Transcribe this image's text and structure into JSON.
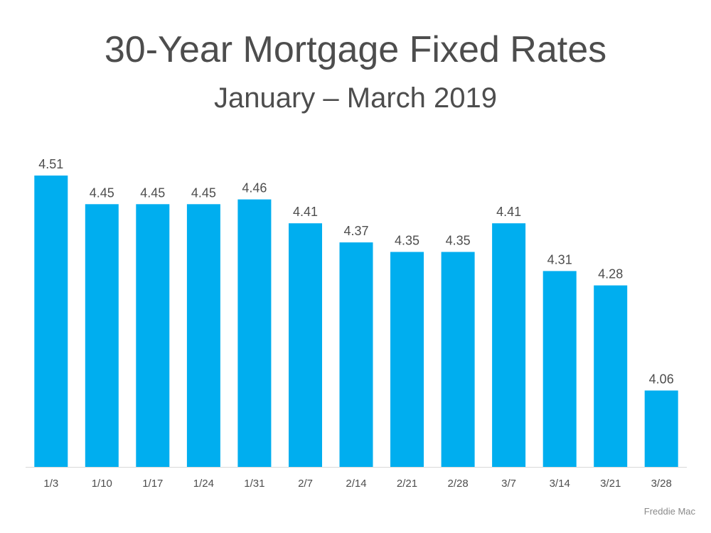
{
  "chart_data": {
    "type": "bar",
    "title": "30-Year Mortgage Fixed Rates",
    "subtitle": "January – March 2019",
    "categories": [
      "1/3",
      "1/10",
      "1/17",
      "1/24",
      "1/31",
      "2/7",
      "2/14",
      "2/21",
      "2/28",
      "3/7",
      "3/14",
      "3/21",
      "3/28"
    ],
    "values": [
      4.51,
      4.45,
      4.45,
      4.45,
      4.46,
      4.41,
      4.37,
      4.35,
      4.35,
      4.41,
      4.31,
      4.28,
      4.06
    ],
    "value_labels": [
      "4.51",
      "4.45",
      "4.45",
      "4.45",
      "4.46",
      "4.41",
      "4.37",
      "4.35",
      "4.35",
      "4.41",
      "4.31",
      "4.28",
      "4.06"
    ],
    "xlabel": "",
    "ylabel": "",
    "ylim": [
      3.9,
      4.51
    ],
    "grid": false,
    "legend": "none",
    "bar_color": "#00aeef",
    "baseline_color": "#d9d9d9"
  },
  "source": "Freddie Mac"
}
